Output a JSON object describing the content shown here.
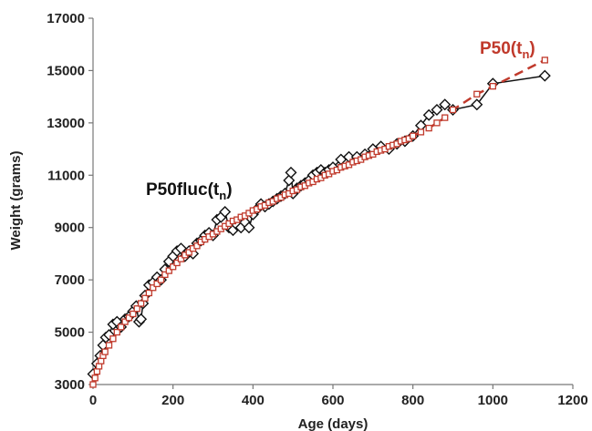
{
  "chart_data": {
    "type": "line",
    "xlabel": "Age (days)",
    "ylabel": "Weight (grams)",
    "xlim": [
      0,
      1200
    ],
    "ylim": [
      3000,
      17000
    ],
    "xticks": [
      "0",
      "200",
      "400",
      "600",
      "800",
      "1000",
      "1200"
    ],
    "yticks": [
      "3000",
      "5000",
      "7000",
      "9000",
      "11000",
      "13000",
      "15000",
      "17000"
    ],
    "grid": false,
    "series": [
      {
        "name": "P50fluc(tn)",
        "name_main": "P50fluc(t",
        "name_sub": "n",
        "name_close": ")",
        "color": "#111111",
        "marker": "diamond",
        "line": "solid",
        "x": [
          0,
          10,
          18,
          25,
          32,
          40,
          50,
          60,
          70,
          80,
          90,
          100,
          108,
          115,
          120,
          125,
          130,
          140,
          150,
          160,
          170,
          180,
          190,
          200,
          210,
          220,
          230,
          240,
          250,
          260,
          270,
          280,
          290,
          300,
          310,
          320,
          330,
          340,
          350,
          360,
          370,
          380,
          390,
          400,
          410,
          420,
          430,
          440,
          450,
          460,
          470,
          480,
          490,
          495,
          500,
          510,
          520,
          530,
          540,
          550,
          560,
          570,
          580,
          590,
          600,
          620,
          640,
          660,
          680,
          700,
          720,
          740,
          760,
          780,
          800,
          820,
          840,
          860,
          880,
          900,
          960,
          1000,
          1130
        ],
        "y": [
          3400,
          3800,
          4100,
          4500,
          4800,
          4900,
          5300,
          5400,
          5200,
          5500,
          5600,
          5800,
          6000,
          5400,
          5500,
          6100,
          6400,
          6800,
          6900,
          7100,
          7000,
          7400,
          7700,
          7900,
          8100,
          8200,
          7900,
          8100,
          8000,
          8400,
          8500,
          8700,
          8800,
          8700,
          9300,
          9400,
          9600,
          9000,
          8900,
          9100,
          9000,
          9200,
          9000,
          9500,
          9700,
          9900,
          9800,
          9900,
          10000,
          10100,
          10200,
          10300,
          10800,
          11100,
          10300,
          10500,
          10600,
          10700,
          10800,
          11000,
          11100,
          11200,
          11100,
          11200,
          11300,
          11600,
          11700,
          11700,
          11800,
          12000,
          12100,
          12000,
          12200,
          12300,
          12500,
          12900,
          13300,
          13500,
          13700,
          13500,
          13700,
          14500,
          14800
        ]
      },
      {
        "name": "P50(tn)",
        "name_main": "P50(t",
        "name_sub": "n",
        "name_close": ")",
        "color": "#c0392b",
        "marker": "square",
        "line": "dashed",
        "x": [
          0,
          5,
          10,
          15,
          20,
          25,
          30,
          40,
          50,
          60,
          70,
          80,
          90,
          100,
          110,
          120,
          130,
          140,
          150,
          160,
          170,
          180,
          190,
          200,
          210,
          220,
          230,
          240,
          250,
          260,
          270,
          280,
          290,
          300,
          310,
          320,
          330,
          340,
          350,
          360,
          370,
          380,
          390,
          400,
          410,
          420,
          430,
          440,
          450,
          460,
          470,
          480,
          490,
          500,
          510,
          520,
          530,
          540,
          550,
          560,
          570,
          580,
          590,
          600,
          610,
          620,
          630,
          640,
          650,
          660,
          670,
          680,
          690,
          700,
          710,
          720,
          730,
          740,
          750,
          760,
          770,
          780,
          790,
          800,
          820,
          840,
          860,
          880,
          900,
          960,
          1000,
          1130
        ],
        "y": [
          3000,
          3250,
          3500,
          3700,
          3900,
          4100,
          4250,
          4500,
          4750,
          5000,
          5200,
          5400,
          5550,
          5700,
          5900,
          6100,
          6300,
          6500,
          6700,
          6850,
          7000,
          7200,
          7350,
          7500,
          7650,
          7800,
          7950,
          8050,
          8200,
          8300,
          8450,
          8550,
          8650,
          8750,
          8850,
          8950,
          9050,
          9150,
          9250,
          9300,
          9400,
          9450,
          9550,
          9650,
          9700,
          9800,
          9850,
          9950,
          10000,
          10100,
          10150,
          10250,
          10300,
          10400,
          10450,
          10550,
          10600,
          10700,
          10750,
          10850,
          10900,
          11000,
          11050,
          11150,
          11200,
          11300,
          11350,
          11400,
          11500,
          11550,
          11600,
          11700,
          11750,
          11800,
          11900,
          11950,
          12000,
          12100,
          12150,
          12200,
          12300,
          12350,
          12400,
          12500,
          12650,
          12800,
          13000,
          13200,
          13500,
          14100,
          14400,
          15400
        ]
      }
    ]
  }
}
